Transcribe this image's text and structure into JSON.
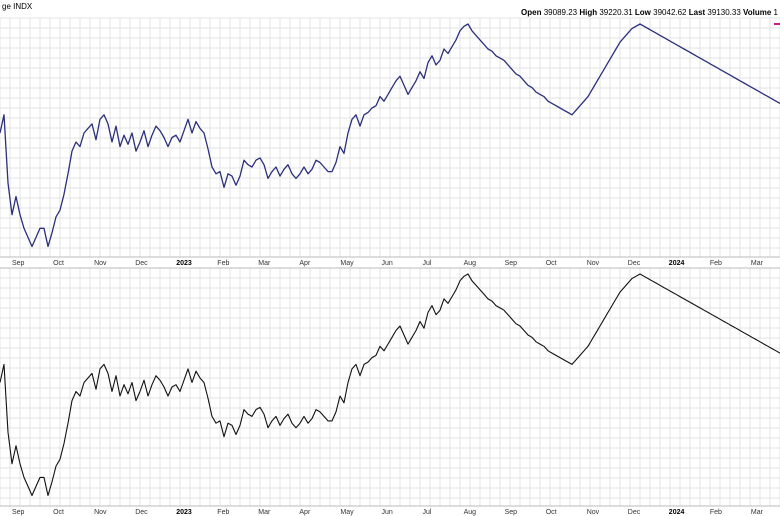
{
  "header": {
    "symbol_label": "ge INDX",
    "ohlcv": [
      {
        "label": "Open",
        "value": "39089.23"
      },
      {
        "label": "High",
        "value": "39220.31"
      },
      {
        "label": "Low",
        "value": "39042.62"
      },
      {
        "label": "Last",
        "value": "39130.33"
      },
      {
        "label": "Volume",
        "value": "1"
      }
    ]
  },
  "colors": {
    "price_line": "#2b2f7a",
    "indicator_line": "#111111",
    "grid": "#e3e3e3",
    "last_marker": "#d6168a"
  },
  "chart_data": [
    {
      "type": "line",
      "panel": "price",
      "x_labels": [
        "Sep",
        "Oct",
        "Nov",
        "Dec",
        "2023",
        "Feb",
        "Mar",
        "Apr",
        "May",
        "Jun",
        "Jul",
        "Aug",
        "Sep",
        "Oct",
        "Nov",
        "Dec",
        "2024",
        "Feb",
        "Mar"
      ],
      "x_labels_bold": [
        "2023",
        "2024"
      ],
      "grid": true,
      "x": [
        0,
        4,
        8,
        12,
        16,
        20,
        24,
        28,
        32,
        36,
        40,
        44,
        48,
        52,
        56,
        60,
        64,
        68,
        72,
        76,
        80,
        84,
        88,
        92,
        96,
        100,
        104,
        108,
        112,
        116,
        120,
        124,
        128,
        132,
        136,
        140,
        144,
        148,
        152,
        156,
        160,
        164,
        168,
        172,
        176,
        180,
        184,
        188,
        192,
        196,
        200,
        204,
        208,
        212,
        216,
        220,
        224,
        228,
        232,
        236,
        240,
        244,
        248,
        252,
        256,
        260,
        264,
        268,
        272,
        276,
        280,
        284,
        288,
        292,
        296,
        300,
        304,
        308,
        312,
        316,
        320,
        324,
        328,
        332,
        336,
        340,
        344,
        348,
        352,
        356,
        360,
        364,
        368,
        372,
        376,
        380,
        384,
        388,
        392,
        396,
        400,
        404,
        408,
        412,
        416,
        420,
        424,
        428,
        432,
        436,
        440,
        444,
        448,
        452,
        456,
        460,
        464,
        468,
        472,
        476,
        480,
        484,
        488,
        492,
        496,
        500,
        504,
        508,
        512,
        516,
        520,
        524,
        528,
        532,
        536,
        540,
        544,
        548,
        552,
        556,
        560,
        564,
        568,
        572,
        576,
        580,
        584,
        588,
        592,
        596,
        600,
        604,
        608,
        612,
        616,
        620,
        624,
        628,
        632,
        636,
        640,
        644,
        648,
        652,
        656,
        660,
        664,
        668,
        672,
        676,
        680,
        684,
        688,
        692,
        696,
        700,
        704,
        708,
        712,
        716,
        720,
        724,
        728,
        732,
        736,
        740,
        744,
        748,
        752,
        756,
        760,
        764,
        768,
        772,
        776,
        780
      ],
      "y": [
        0.52,
        0.6,
        0.3,
        0.16,
        0.24,
        0.16,
        0.1,
        0.06,
        0.02,
        0.06,
        0.1,
        0.1,
        0.02,
        0.08,
        0.15,
        0.18,
        0.25,
        0.34,
        0.44,
        0.48,
        0.46,
        0.52,
        0.54,
        0.56,
        0.49,
        0.58,
        0.6,
        0.56,
        0.48,
        0.55,
        0.46,
        0.51,
        0.47,
        0.52,
        0.44,
        0.48,
        0.53,
        0.46,
        0.51,
        0.55,
        0.53,
        0.5,
        0.46,
        0.5,
        0.51,
        0.48,
        0.53,
        0.58,
        0.52,
        0.57,
        0.54,
        0.52,
        0.45,
        0.37,
        0.34,
        0.35,
        0.28,
        0.34,
        0.33,
        0.29,
        0.33,
        0.4,
        0.38,
        0.37,
        0.4,
        0.41,
        0.38,
        0.32,
        0.35,
        0.37,
        0.33,
        0.36,
        0.38,
        0.34,
        0.32,
        0.34,
        0.37,
        0.34,
        0.36,
        0.4,
        0.39,
        0.37,
        0.35,
        0.35,
        0.39,
        0.46,
        0.43,
        0.52,
        0.58,
        0.6,
        0.55,
        0.6,
        0.61,
        0.63,
        0.64,
        0.68,
        0.66,
        0.69,
        0.72,
        0.75,
        0.77,
        0.73,
        0.69,
        0.72,
        0.75,
        0.79,
        0.76,
        0.83,
        0.86,
        0.82,
        0.84,
        0.89,
        0.87,
        0.9,
        0.93,
        0.97,
        0.99,
        1.0,
        0.97,
        0.95,
        0.93,
        0.91,
        0.89,
        0.88,
        0.86,
        0.85,
        0.84,
        0.82,
        0.8,
        0.78,
        0.77,
        0.75,
        0.73,
        0.72,
        0.7,
        0.69,
        0.68,
        0.66,
        0.65,
        0.64,
        0.63,
        0.62,
        0.61,
        0.6,
        0.62,
        0.64,
        0.66,
        0.68,
        0.71,
        0.74,
        0.77,
        0.8,
        0.83,
        0.86,
        0.89,
        0.92,
        0.94,
        0.96,
        0.98,
        0.99,
        1.0,
        0.99,
        0.98,
        0.97,
        0.96,
        0.95,
        0.94,
        0.93,
        0.92,
        0.91,
        0.9,
        0.89,
        0.88,
        0.87,
        0.86,
        0.85,
        0.84,
        0.83,
        0.82,
        0.81,
        0.8,
        0.79,
        0.78,
        0.77,
        0.76,
        0.75,
        0.74,
        0.73,
        0.72,
        0.71,
        0.7,
        0.69,
        0.68,
        0.67,
        0.66,
        0.65
      ],
      "note": ""
    }
  ]
}
